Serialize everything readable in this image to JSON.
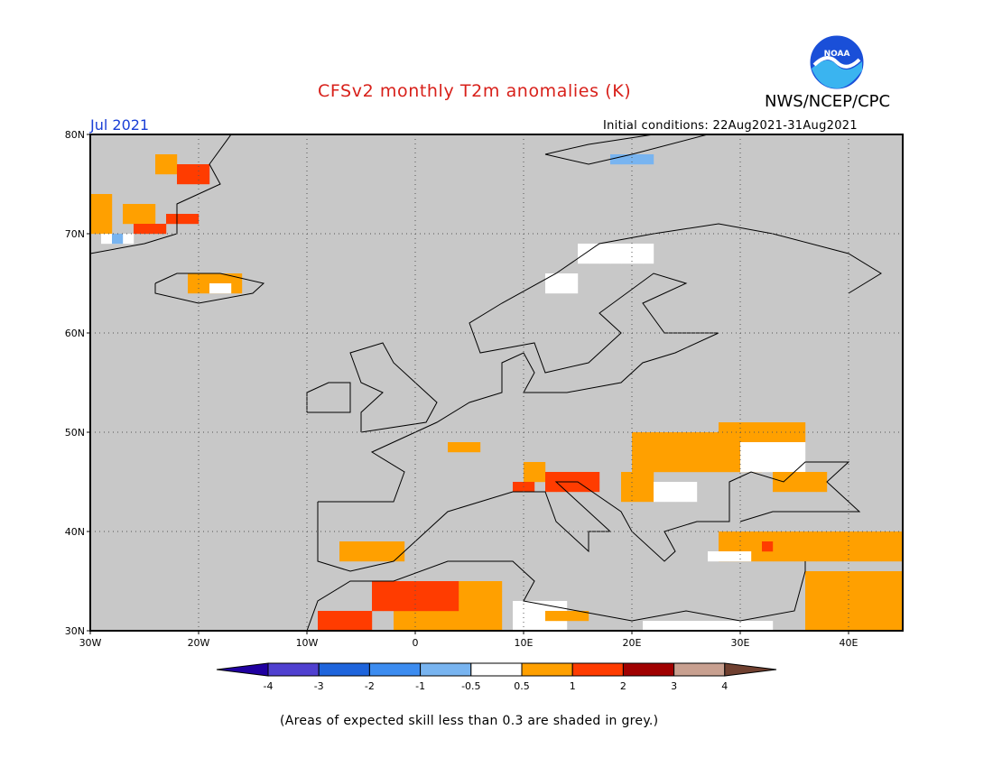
{
  "header": {
    "title": "CFSv2 monthly T2m anomalies (K)",
    "org": "NWS/NCEP/CPC",
    "month": "Jul 2021",
    "initial_conditions": "Initial conditions: 22Aug2021-31Aug2021",
    "logo_text": "NOAA"
  },
  "footnote": "(Areas of expected skill less than 0.3 are shaded in grey.)",
  "map": {
    "lon_range": [
      -30,
      45
    ],
    "lat_range": [
      30,
      80
    ],
    "lat_ticks": [
      "30N",
      "40N",
      "50N",
      "60N",
      "70N",
      "80N"
    ],
    "lon_ticks": [
      "30W",
      "20W",
      "10W",
      "0",
      "10E",
      "20E",
      "30E",
      "40E"
    ],
    "colors": {
      "land_sea_low_skill": "#c8c8c8",
      "neutral": "#ffffff",
      "pos_0_5_1": "#ffa000",
      "pos_1_2": "#ff3c00",
      "neg_0_5_1": "#78b4f0"
    }
  },
  "colorbar": {
    "labels": [
      "-4",
      "-3",
      "-2",
      "-1",
      "-0.5",
      "0.5",
      "1",
      "2",
      "3",
      "4"
    ],
    "colors": [
      "#2000a0",
      "#5040d0",
      "#1e64dc",
      "#3c8cf0",
      "#78b4f0",
      "#ffffff",
      "#ffa000",
      "#ff3c00",
      "#a00000",
      "#c8a090",
      "#704030"
    ]
  }
}
